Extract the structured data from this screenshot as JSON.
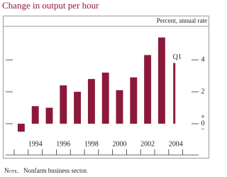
{
  "chart_data": {
    "type": "bar",
    "title": "Change in output per hour",
    "unit_label": "Percent, annual rate",
    "categories": [
      null,
      "1994",
      null,
      "1996",
      null,
      "1998",
      null,
      "2000",
      null,
      "2002",
      null,
      "2004"
    ],
    "values": [
      -0.5,
      1.1,
      1.0,
      2.4,
      2.0,
      2.8,
      3.2,
      2.1,
      2.9,
      4.3,
      5.4,
      3.8
    ],
    "annotation": "Q1",
    "color": "#8b1a3a",
    "ylim": [
      -1,
      6.1
    ],
    "yticks": [
      0,
      2,
      4
    ],
    "zero_signs": [
      "+",
      "−"
    ],
    "note_label": "Note.",
    "note": "Nonfarm business sector."
  }
}
